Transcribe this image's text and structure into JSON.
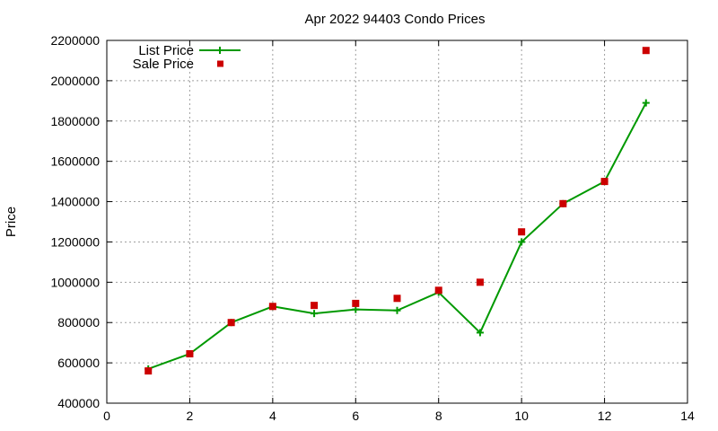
{
  "chart_data": {
    "type": "line",
    "title": "Apr 2022 94403 Condo Prices",
    "xlabel": "",
    "ylabel": "Price",
    "xlim": [
      0,
      14
    ],
    "ylim": [
      400000,
      2200000
    ],
    "xticks": [
      0,
      2,
      4,
      6,
      8,
      10,
      12,
      14
    ],
    "yticks": [
      400000,
      600000,
      800000,
      1000000,
      1200000,
      1400000,
      1600000,
      1800000,
      2000000,
      2200000
    ],
    "grid": true,
    "legend_position": "top-left",
    "series": [
      {
        "name": "List Price",
        "style": "line-plus",
        "color": "#009900",
        "x": [
          1,
          2,
          3,
          4,
          5,
          6,
          7,
          8,
          9,
          10,
          11,
          12,
          13
        ],
        "y": [
          570000,
          645000,
          800000,
          880000,
          845000,
          865000,
          860000,
          950000,
          750000,
          1200000,
          1390000,
          1500000,
          1890000
        ]
      },
      {
        "name": "Sale Price",
        "style": "square-points",
        "color": "#cc0000",
        "x": [
          1,
          2,
          3,
          4,
          5,
          6,
          7,
          8,
          9,
          10,
          11,
          12,
          13
        ],
        "y": [
          560000,
          645000,
          800000,
          880000,
          885000,
          895000,
          920000,
          960000,
          1000000,
          1250000,
          1390000,
          1500000,
          2150000
        ]
      }
    ]
  }
}
